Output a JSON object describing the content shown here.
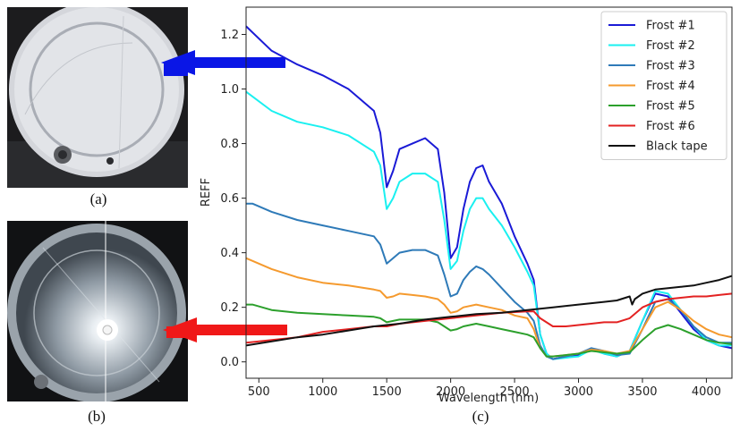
{
  "captions": {
    "a": "(a)",
    "b": "(b)",
    "c": "(c)"
  },
  "photo_a": {
    "arrow_color": "#0a16e6"
  },
  "photo_b": {
    "arrow_color": "#f01818"
  },
  "chart_data": {
    "type": "line",
    "xlabel": "Wavelength (nm)",
    "ylabel": "REFF",
    "xlim": [
      400,
      4200
    ],
    "ylim": [
      -0.06,
      1.3
    ],
    "x_ticks": [
      500,
      1000,
      1500,
      2000,
      2500,
      3000,
      3500,
      4000
    ],
    "y_ticks": [
      0.0,
      0.2,
      0.4,
      0.6,
      0.8,
      1.0,
      1.2
    ],
    "x_tick_labels": [
      "500",
      "1000",
      "1500",
      "2000",
      "2500",
      "3000",
      "3500",
      "4000"
    ],
    "y_tick_labels": [
      "0.0",
      "0.2",
      "0.4",
      "0.6",
      "0.8",
      "1.0",
      "1.2"
    ],
    "grid": false,
    "legend_position": "top-right",
    "series": [
      {
        "name": "Frost #1",
        "color": "#1a1ad6",
        "x": [
          400,
          600,
          800,
          1000,
          1200,
          1400,
          1450,
          1500,
          1550,
          1600,
          1700,
          1800,
          1900,
          1950,
          2000,
          2050,
          2100,
          2150,
          2200,
          2250,
          2300,
          2400,
          2500,
          2600,
          2650,
          2700,
          2750,
          2800,
          2900,
          3000,
          3100,
          3200,
          3300,
          3400,
          3500,
          3600,
          3700,
          3800,
          3900,
          4000,
          4100,
          4200
        ],
        "y": [
          1.23,
          1.14,
          1.09,
          1.05,
          1.0,
          0.92,
          0.84,
          0.64,
          0.7,
          0.78,
          0.8,
          0.82,
          0.78,
          0.62,
          0.38,
          0.42,
          0.56,
          0.66,
          0.71,
          0.72,
          0.66,
          0.58,
          0.46,
          0.36,
          0.3,
          0.1,
          0.03,
          0.01,
          0.02,
          0.025,
          0.05,
          0.03,
          0.02,
          0.04,
          0.15,
          0.25,
          0.24,
          0.18,
          0.12,
          0.08,
          0.06,
          0.05
        ]
      },
      {
        "name": "Frost #2",
        "color": "#1af0f0",
        "x": [
          400,
          600,
          800,
          1000,
          1200,
          1400,
          1450,
          1500,
          1550,
          1600,
          1700,
          1800,
          1900,
          1950,
          2000,
          2050,
          2100,
          2150,
          2200,
          2250,
          2300,
          2400,
          2500,
          2600,
          2650,
          2700,
          2750,
          2800,
          2900,
          3000,
          3100,
          3200,
          3300,
          3400,
          3500,
          3600,
          3700,
          3800,
          3900,
          4000,
          4100,
          4200
        ],
        "y": [
          0.99,
          0.92,
          0.88,
          0.86,
          0.83,
          0.77,
          0.72,
          0.56,
          0.6,
          0.66,
          0.69,
          0.69,
          0.66,
          0.52,
          0.34,
          0.37,
          0.48,
          0.56,
          0.6,
          0.6,
          0.56,
          0.5,
          0.42,
          0.33,
          0.28,
          0.1,
          0.03,
          0.01,
          0.015,
          0.02,
          0.045,
          0.03,
          0.02,
          0.04,
          0.15,
          0.26,
          0.25,
          0.19,
          0.13,
          0.08,
          0.06,
          0.06
        ]
      },
      {
        "name": "Frost #3",
        "color": "#2e7ab8",
        "x": [
          400,
          450,
          600,
          800,
          1000,
          1200,
          1400,
          1450,
          1500,
          1550,
          1600,
          1700,
          1800,
          1900,
          1950,
          2000,
          2050,
          2100,
          2150,
          2200,
          2250,
          2300,
          2400,
          2500,
          2600,
          2650,
          2700,
          2750,
          2800,
          2900,
          3000,
          3100,
          3200,
          3300,
          3400,
          3500,
          3600,
          3700,
          3800,
          3900,
          4000,
          4100,
          4200
        ],
        "y": [
          0.58,
          0.58,
          0.55,
          0.52,
          0.5,
          0.48,
          0.46,
          0.43,
          0.36,
          0.38,
          0.4,
          0.41,
          0.41,
          0.39,
          0.32,
          0.24,
          0.25,
          0.3,
          0.33,
          0.35,
          0.34,
          0.32,
          0.27,
          0.22,
          0.18,
          0.15,
          0.06,
          0.02,
          0.01,
          0.02,
          0.03,
          0.05,
          0.04,
          0.025,
          0.03,
          0.12,
          0.22,
          0.23,
          0.19,
          0.13,
          0.09,
          0.07,
          0.07
        ]
      },
      {
        "name": "Frost #4",
        "color": "#f59a2e",
        "x": [
          400,
          600,
          800,
          1000,
          1200,
          1400,
          1450,
          1500,
          1550,
          1600,
          1700,
          1800,
          1900,
          1950,
          2000,
          2050,
          2100,
          2200,
          2300,
          2400,
          2500,
          2600,
          2650,
          2700,
          2750,
          2800,
          2900,
          3000,
          3100,
          3200,
          3300,
          3400,
          3500,
          3600,
          3700,
          3800,
          3900,
          4000,
          4100,
          4200
        ],
        "y": [
          0.38,
          0.34,
          0.31,
          0.29,
          0.28,
          0.265,
          0.26,
          0.235,
          0.24,
          0.25,
          0.245,
          0.24,
          0.23,
          0.21,
          0.18,
          0.185,
          0.2,
          0.21,
          0.2,
          0.19,
          0.17,
          0.16,
          0.12,
          0.05,
          0.02,
          0.02,
          0.025,
          0.03,
          0.045,
          0.04,
          0.03,
          0.04,
          0.12,
          0.2,
          0.22,
          0.19,
          0.15,
          0.12,
          0.1,
          0.09
        ]
      },
      {
        "name": "Frost #5",
        "color": "#2ca02c",
        "x": [
          400,
          450,
          600,
          800,
          1000,
          1200,
          1400,
          1450,
          1500,
          1550,
          1600,
          1700,
          1800,
          1900,
          1950,
          2000,
          2050,
          2100,
          2200,
          2300,
          2400,
          2500,
          2600,
          2650,
          2700,
          2750,
          2800,
          2900,
          3000,
          3100,
          3200,
          3300,
          3400,
          3500,
          3600,
          3700,
          3800,
          3900,
          4000,
          4100,
          4200
        ],
        "y": [
          0.21,
          0.21,
          0.19,
          0.18,
          0.175,
          0.17,
          0.165,
          0.16,
          0.145,
          0.15,
          0.155,
          0.155,
          0.155,
          0.145,
          0.13,
          0.115,
          0.12,
          0.13,
          0.14,
          0.13,
          0.12,
          0.11,
          0.1,
          0.09,
          0.05,
          0.02,
          0.02,
          0.025,
          0.03,
          0.04,
          0.035,
          0.03,
          0.035,
          0.08,
          0.12,
          0.135,
          0.12,
          0.1,
          0.08,
          0.07,
          0.065
        ]
      },
      {
        "name": "Frost #6",
        "color": "#e32222",
        "x": [
          400,
          600,
          800,
          1000,
          1200,
          1400,
          1500,
          1600,
          1800,
          2000,
          2200,
          2400,
          2600,
          2650,
          2700,
          2800,
          2900,
          3000,
          3100,
          3200,
          3300,
          3400,
          3500,
          3600,
          3700,
          3800,
          3900,
          4000,
          4100,
          4200
        ],
        "y": [
          0.07,
          0.08,
          0.09,
          0.11,
          0.12,
          0.13,
          0.13,
          0.14,
          0.15,
          0.16,
          0.17,
          0.18,
          0.185,
          0.185,
          0.16,
          0.13,
          0.13,
          0.135,
          0.14,
          0.145,
          0.145,
          0.16,
          0.2,
          0.22,
          0.23,
          0.235,
          0.24,
          0.24,
          0.245,
          0.25
        ]
      },
      {
        "name": "Black tape",
        "color": "#111111",
        "x": [
          400,
          600,
          800,
          1000,
          1200,
          1400,
          1600,
          1800,
          2000,
          2200,
          2400,
          2600,
          2800,
          3000,
          3200,
          3300,
          3400,
          3420,
          3440,
          3500,
          3600,
          3700,
          3800,
          3900,
          4000,
          4100,
          4200
        ],
        "y": [
          0.06,
          0.075,
          0.09,
          0.1,
          0.115,
          0.13,
          0.14,
          0.155,
          0.165,
          0.175,
          0.18,
          0.19,
          0.2,
          0.21,
          0.22,
          0.225,
          0.24,
          0.21,
          0.23,
          0.25,
          0.265,
          0.27,
          0.275,
          0.28,
          0.29,
          0.3,
          0.315
        ]
      }
    ]
  }
}
